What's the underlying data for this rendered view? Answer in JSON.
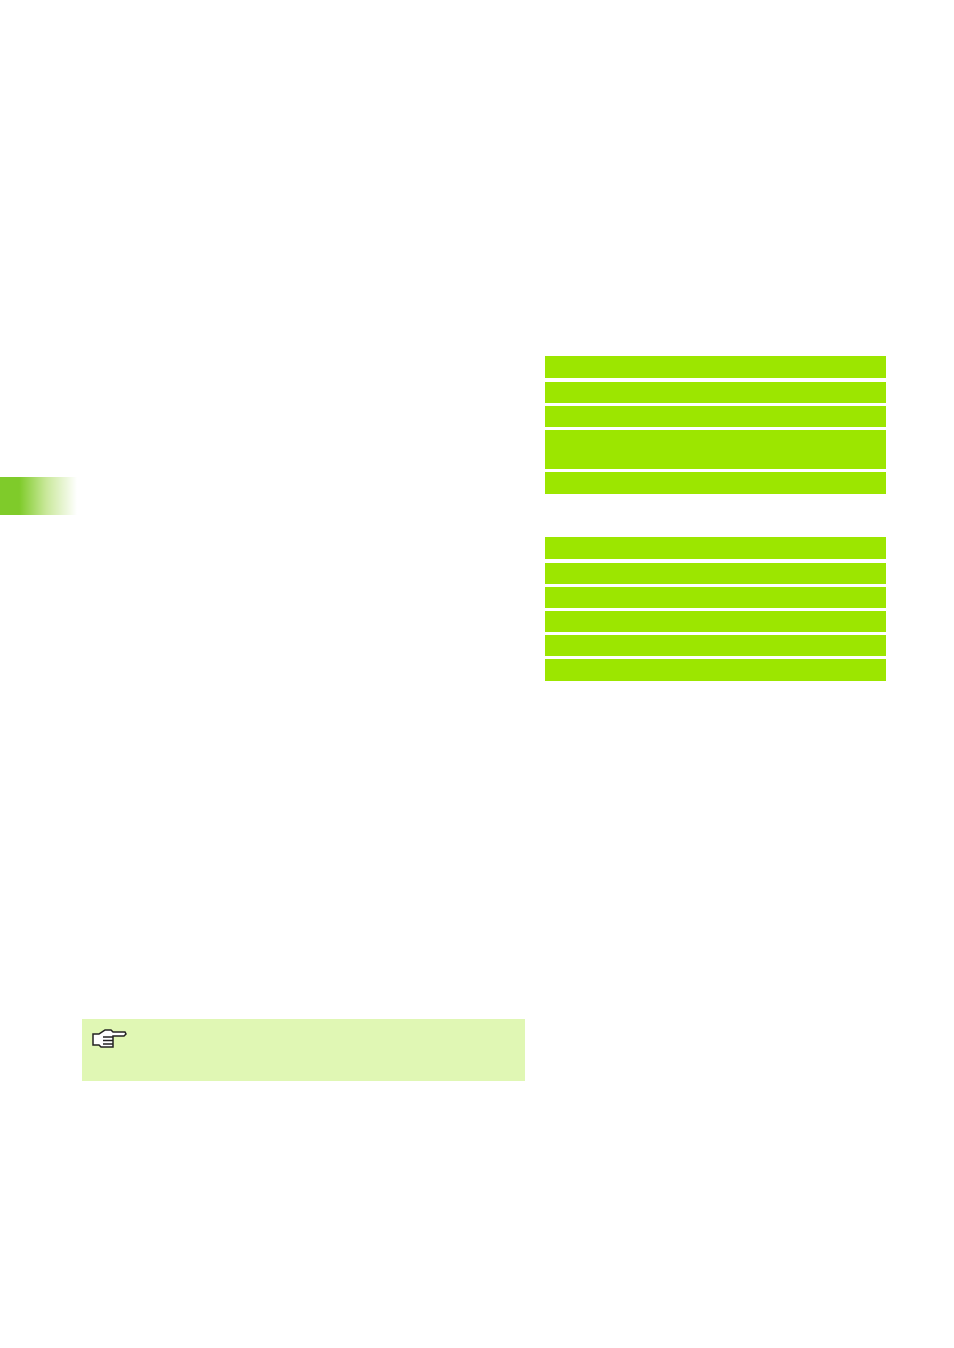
{
  "side_tab": {
    "color": "#7fcb2a"
  },
  "tables": [
    {
      "rows": 5,
      "color": "#9ce600"
    },
    {
      "rows": 6,
      "color": "#9ce600"
    }
  ],
  "note": {
    "icon": "pointing-hand-icon",
    "color": "#e0f7b4"
  }
}
